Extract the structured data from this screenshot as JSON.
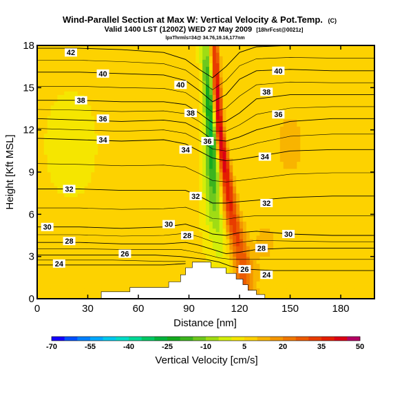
{
  "chart_data": {
    "type": "heatmap",
    "title": "Wind-Parallel Section at Max W: Vertical Velocity & Pot.Temp.",
    "title_mark": "(C)",
    "subtitle": "Valid 1400 LST (1200Z) WED 27 May 2009",
    "subtitle_note": "[18hrFcst@0021z]",
    "subtitle2": "lpxThrmls=34@ 34.76,19.16,177nm",
    "xlabel": "Distance [nm]",
    "ylabel": "Height [Kft MSL]",
    "xlim": [
      0,
      200
    ],
    "ylim": [
      0,
      18
    ],
    "xticks": [
      "0",
      "30",
      "60",
      "90",
      "120",
      "150",
      "180"
    ],
    "xtick_values": [
      0,
      30,
      60,
      90,
      120,
      150,
      180
    ],
    "yticks": [
      "0",
      "3",
      "6",
      "9",
      "12",
      "15",
      "18"
    ],
    "ytick_values": [
      0,
      3,
      6,
      9,
      12,
      15,
      18
    ],
    "colorbar": {
      "label": "Vertical Velocity [cm/s]",
      "tick_labels": [
        "-70",
        "-55",
        "-40",
        "-25",
        "-10",
        "5",
        "20",
        "35",
        "50"
      ],
      "tick_values": [
        -70,
        -55,
        -40,
        -25,
        -10,
        5,
        20,
        35,
        50
      ],
      "bins": [
        {
          "lo": -70,
          "hi": -65,
          "color": "#1400ff"
        },
        {
          "lo": -65,
          "hi": -60,
          "color": "#0050ff"
        },
        {
          "lo": -60,
          "hi": -55,
          "color": "#0080ff"
        },
        {
          "lo": -55,
          "hi": -50,
          "color": "#00a8ff"
        },
        {
          "lo": -50,
          "hi": -45,
          "color": "#00c8ee"
        },
        {
          "lo": -45,
          "hi": -40,
          "color": "#00dcc8"
        },
        {
          "lo": -40,
          "hi": -35,
          "color": "#00d896"
        },
        {
          "lo": -35,
          "hi": -30,
          "color": "#00c864"
        },
        {
          "lo": -30,
          "hi": -25,
          "color": "#00b43c"
        },
        {
          "lo": -25,
          "hi": -20,
          "color": "#14aa1e"
        },
        {
          "lo": -20,
          "hi": -15,
          "color": "#3cb41e"
        },
        {
          "lo": -15,
          "hi": -10,
          "color": "#6ec81e"
        },
        {
          "lo": -10,
          "hi": -5,
          "color": "#a0dc14"
        },
        {
          "lo": -5,
          "hi": 0,
          "color": "#d2ee0a"
        },
        {
          "lo": 0,
          "hi": 5,
          "color": "#f5e600"
        },
        {
          "lo": 5,
          "hi": 10,
          "color": "#fdd200"
        },
        {
          "lo": 10,
          "hi": 15,
          "color": "#f8b400"
        },
        {
          "lo": 15,
          "hi": 20,
          "color": "#f49600"
        },
        {
          "lo": 20,
          "hi": 25,
          "color": "#f07800"
        },
        {
          "lo": 25,
          "hi": 30,
          "color": "#ec5a00"
        },
        {
          "lo": 30,
          "hi": 35,
          "color": "#e83c00"
        },
        {
          "lo": 35,
          "hi": 40,
          "color": "#e41e00"
        },
        {
          "lo": 40,
          "hi": 45,
          "color": "#dc0014"
        },
        {
          "lo": 45,
          "hi": 50,
          "color": "#b40064"
        }
      ]
    },
    "features": {
      "background_value": 6,
      "plume_updraft_peak": 48,
      "plume_downdraft_min": -33,
      "plume_path_x": [
        104,
        107,
        113,
        120
      ],
      "plume_path_y": [
        18,
        12,
        6,
        2
      ],
      "warm_region_value": 11,
      "warm_region_center": [
        150,
        11
      ],
      "warm_region_center_2": [
        135,
        4
      ]
    },
    "terrain": {
      "x": [
        0,
        38,
        38,
        55,
        55,
        78,
        78,
        85,
        85,
        88,
        88,
        92,
        92,
        96,
        96,
        103,
        103,
        112,
        112,
        118,
        118,
        122,
        122,
        125,
        125,
        130,
        130,
        135,
        135,
        200
      ],
      "y": [
        0,
        0,
        0.5,
        0.5,
        0.8,
        0.8,
        1.2,
        1.2,
        1.7,
        1.7,
        2.2,
        2.2,
        2.6,
        2.6,
        2.6,
        2.6,
        2.2,
        2.2,
        1.8,
        1.8,
        1.4,
        1.4,
        1.0,
        1.0,
        0.6,
        0.6,
        0.3,
        0.3,
        0,
        0
      ]
    },
    "contours": [
      {
        "theta": 24,
        "label": "24",
        "x": [
          0,
          15,
          30,
          45,
          60,
          75,
          88
        ],
        "y": [
          2.4,
          2.4,
          2.4,
          2.4,
          2.4,
          2.4,
          2.5
        ]
      },
      {
        "theta": 26,
        "label": "26",
        "x": [
          0,
          25,
          50,
          70,
          85,
          92,
          100,
          108,
          115,
          125,
          140,
          170,
          200
        ],
        "y": [
          3.1,
          3.1,
          3.1,
          3.1,
          3.0,
          2.9,
          2.8,
          2.6,
          2.3,
          2.1,
          2.0,
          2.0,
          2.0
        ]
      },
      {
        "theta": 28,
        "label": "28",
        "x": [
          0,
          25,
          50,
          75,
          88,
          96,
          104,
          112,
          120,
          130,
          150,
          175,
          200
        ],
        "y": [
          4.0,
          4.0,
          3.9,
          3.9,
          4.0,
          3.8,
          3.5,
          3.2,
          3.3,
          3.5,
          3.6,
          3.6,
          3.6
        ]
      },
      {
        "theta": 30,
        "label": "30",
        "x": [
          0,
          25,
          50,
          75,
          88,
          96,
          104,
          112,
          120,
          130,
          150,
          175,
          200
        ],
        "y": [
          5.1,
          5.1,
          5.0,
          5.1,
          5.3,
          5.0,
          4.6,
          4.5,
          4.7,
          4.8,
          4.6,
          4.5,
          4.5
        ]
      },
      {
        "theta": 32,
        "label": "32",
        "x": [
          0,
          25,
          50,
          75,
          88,
          96,
          104,
          112,
          120,
          130,
          150,
          175,
          200
        ],
        "y": [
          7.8,
          7.8,
          7.7,
          7.7,
          7.7,
          7.3,
          6.8,
          6.8,
          6.9,
          7.0,
          7.2,
          7.3,
          7.3
        ]
      },
      {
        "theta": 34,
        "label": "34",
        "x": [
          0,
          25,
          50,
          75,
          88,
          96,
          104,
          112,
          120,
          130,
          150,
          175,
          200
        ],
        "y": [
          11.4,
          11.3,
          11.2,
          11.3,
          11.0,
          10.5,
          10.0,
          9.8,
          9.9,
          10.1,
          10.5,
          10.6,
          10.6
        ]
      },
      {
        "theta": 36,
        "label": "36",
        "x": [
          0,
          25,
          50,
          75,
          88,
          96,
          104,
          112,
          120,
          130,
          150,
          175,
          200
        ],
        "y": [
          12.8,
          12.7,
          12.6,
          12.7,
          12.5,
          12.0,
          11.3,
          11.2,
          11.5,
          12.0,
          12.6,
          12.8,
          12.8
        ]
      },
      {
        "theta": 38,
        "label": "38",
        "x": [
          0,
          25,
          50,
          75,
          88,
          96,
          104,
          112,
          120,
          130,
          150,
          175,
          200
        ],
        "y": [
          14.1,
          14.1,
          14.0,
          14.0,
          13.8,
          13.2,
          12.5,
          12.6,
          13.2,
          14.2,
          14.5,
          14.5,
          14.5
        ]
      },
      {
        "theta": 40,
        "label": "40",
        "x": [
          0,
          25,
          50,
          75,
          88,
          96,
          104,
          112,
          120,
          130,
          150,
          175,
          200
        ],
        "y": [
          16.1,
          16.1,
          16.0,
          15.9,
          15.5,
          14.8,
          14.0,
          14.5,
          15.6,
          16.2,
          16.3,
          16.2,
          16.2
        ]
      },
      {
        "theta": 42,
        "label": "42",
        "x": [
          0,
          25,
          50,
          75,
          88,
          96,
          104,
          112,
          120,
          130,
          150,
          175,
          200
        ],
        "y": [
          17.8,
          17.8,
          17.7,
          17.5,
          17.0,
          16.3,
          15.7,
          16.5,
          17.5,
          17.9,
          18.0,
          18.0,
          18.0
        ]
      }
    ],
    "contour_labels": [
      {
        "text": "42",
        "x": 20,
        "y": 17.5
      },
      {
        "text": "40",
        "x": 39,
        "y": 16.0
      },
      {
        "text": "40",
        "x": 85,
        "y": 15.2
      },
      {
        "text": "40",
        "x": 143,
        "y": 16.2
      },
      {
        "text": "38",
        "x": 26,
        "y": 14.1
      },
      {
        "text": "38",
        "x": 91,
        "y": 13.2
      },
      {
        "text": "38",
        "x": 136,
        "y": 14.7
      },
      {
        "text": "36",
        "x": 39,
        "y": 12.8
      },
      {
        "text": "36",
        "x": 101,
        "y": 11.2
      },
      {
        "text": "36",
        "x": 143,
        "y": 13.1
      },
      {
        "text": "34",
        "x": 39,
        "y": 11.3
      },
      {
        "text": "34",
        "x": 88,
        "y": 10.6
      },
      {
        "text": "34",
        "x": 135,
        "y": 10.1
      },
      {
        "text": "32",
        "x": 19,
        "y": 7.8
      },
      {
        "text": "32",
        "x": 94,
        "y": 7.3
      },
      {
        "text": "32",
        "x": 136,
        "y": 6.8
      },
      {
        "text": "30",
        "x": 6,
        "y": 5.1
      },
      {
        "text": "30",
        "x": 78,
        "y": 5.3
      },
      {
        "text": "30",
        "x": 149,
        "y": 4.6
      },
      {
        "text": "28",
        "x": 19,
        "y": 4.1
      },
      {
        "text": "28",
        "x": 89,
        "y": 4.5
      },
      {
        "text": "28",
        "x": 133,
        "y": 3.6
      },
      {
        "text": "26",
        "x": 52,
        "y": 3.2
      },
      {
        "text": "26",
        "x": 123,
        "y": 2.1
      },
      {
        "text": "24",
        "x": 13,
        "y": 2.5
      },
      {
        "text": "24",
        "x": 136,
        "y": 1.7
      }
    ]
  }
}
